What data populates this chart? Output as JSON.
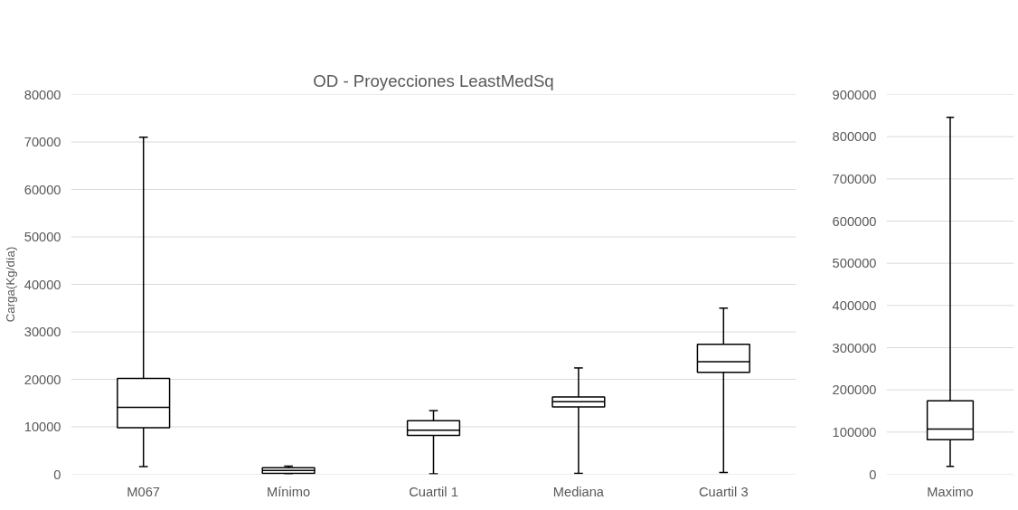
{
  "chart_data": [
    {
      "type": "box",
      "title": "OD - Proyecciones LeastMedSq",
      "ylabel": "Carga(Kg/día)",
      "categories": [
        "M067",
        "Mínimo",
        "Cuartil 1",
        "Mediana",
        "Cuartil 3"
      ],
      "boxes": [
        {
          "low": 1600,
          "q1": 9800,
          "median": 14100,
          "q3": 20200,
          "high": 71000
        },
        {
          "low": 100,
          "q1": 200,
          "median": 800,
          "q3": 1400,
          "high": 1700
        },
        {
          "low": 100,
          "q1": 8200,
          "median": 9300,
          "q3": 11300,
          "high": 13400
        },
        {
          "low": 200,
          "q1": 14200,
          "median": 15300,
          "q3": 16300,
          "high": 22400
        },
        {
          "low": 400,
          "q1": 21500,
          "median": 23700,
          "q3": 27400,
          "high": 35000
        }
      ],
      "color": "#000000",
      "ylim": [
        0,
        80000
      ],
      "yticks": [
        0,
        10000,
        20000,
        30000,
        40000,
        50000,
        60000,
        70000,
        80000
      ],
      "grid": "y"
    },
    {
      "type": "box",
      "categories": [
        "Maximo"
      ],
      "boxes": [
        {
          "low": 19000,
          "q1": 82000,
          "median": 107000,
          "q3": 174000,
          "high": 846000
        }
      ],
      "color": "#000000",
      "ylim": [
        0,
        900000
      ],
      "yticks": [
        0,
        100000,
        200000,
        300000,
        400000,
        500000,
        600000,
        700000,
        800000,
        900000
      ],
      "grid": "y"
    }
  ]
}
